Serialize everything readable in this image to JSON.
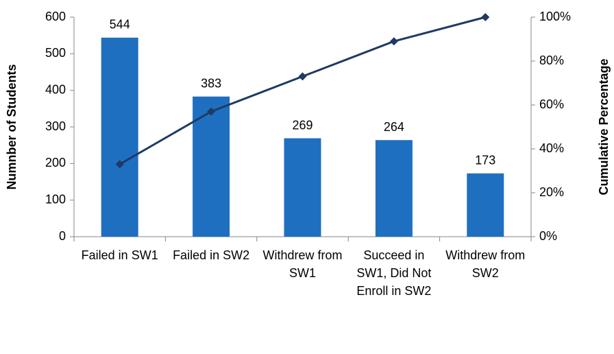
{
  "chart_data": {
    "type": "bar",
    "ylabel": "Numnber of Students",
    "y2label": "Cumulative Percentage",
    "categories": [
      "Failed in SW1",
      "Failed in SW2",
      "Withdrew from SW1",
      "Succeed in SW1, Did Not Enroll in SW2",
      "Withdrew from SW2"
    ],
    "series": [
      {
        "type": "bar",
        "color": "#1f6fc0",
        "values": [
          544,
          383,
          269,
          264,
          173
        ]
      },
      {
        "type": "line",
        "axis": "y2",
        "color": "#1f3a64",
        "values": [
          33,
          57,
          73,
          89,
          100
        ]
      }
    ],
    "ylim": [
      0,
      600
    ],
    "yticks": [
      0,
      100,
      200,
      300,
      400,
      500,
      600
    ],
    "y2lim": [
      0,
      100
    ],
    "y2ticks": [
      {
        "value": 0,
        "label": "0%"
      },
      {
        "value": 20,
        "label": "20%"
      },
      {
        "value": 40,
        "label": "40%"
      },
      {
        "value": 60,
        "label": "60%"
      },
      {
        "value": 80,
        "label": "80%"
      },
      {
        "value": 100,
        "label": "100%"
      }
    ]
  }
}
